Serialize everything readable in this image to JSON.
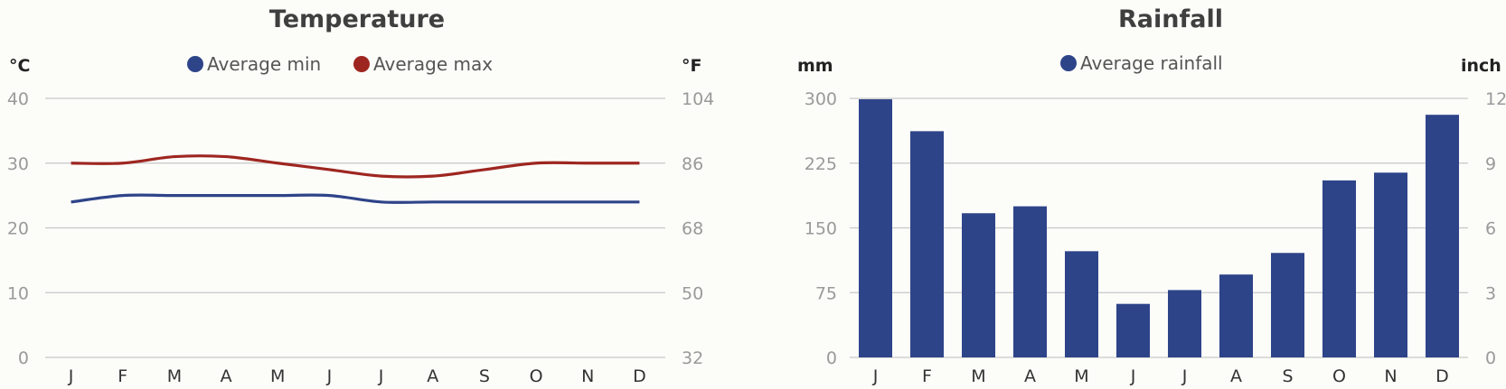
{
  "chart_data": [
    {
      "type": "line",
      "title": "Temperature",
      "categories": [
        "J",
        "F",
        "M",
        "A",
        "M",
        "J",
        "J",
        "A",
        "S",
        "O",
        "N",
        "D"
      ],
      "left_unit": "°C",
      "right_unit": "°F",
      "ylim": [
        0,
        40
      ],
      "left_ticks": [
        "0",
        "10",
        "20",
        "30",
        "40"
      ],
      "right_ticks": [
        "32",
        "50",
        "68",
        "86",
        "104"
      ],
      "grid": true,
      "legend_position": "top",
      "series": [
        {
          "name": "Average min",
          "color": "#2e4489",
          "values": [
            24,
            25,
            25,
            25,
            25,
            25,
            24,
            24,
            24,
            24,
            24,
            24
          ]
        },
        {
          "name": "Average max",
          "color": "#9e2620",
          "values": [
            30,
            30,
            31,
            31,
            30,
            29,
            28,
            28,
            29,
            30,
            30,
            30
          ]
        }
      ]
    },
    {
      "type": "bar",
      "title": "Rainfall",
      "categories": [
        "J",
        "F",
        "M",
        "A",
        "M",
        "J",
        "J",
        "A",
        "S",
        "O",
        "N",
        "D"
      ],
      "left_unit": "mm",
      "right_unit": "inch",
      "ylim": [
        0,
        300
      ],
      "left_ticks": [
        "0",
        "75",
        "150",
        "225",
        "300"
      ],
      "right_ticks": [
        "0",
        "3",
        "6",
        "9",
        "12"
      ],
      "grid": true,
      "legend_position": "top",
      "series": [
        {
          "name": "Average rainfall",
          "color": "#2e4489",
          "values": [
            299,
            262,
            167,
            175,
            123,
            62,
            78,
            96,
            121,
            205,
            214,
            281
          ]
        }
      ]
    }
  ]
}
